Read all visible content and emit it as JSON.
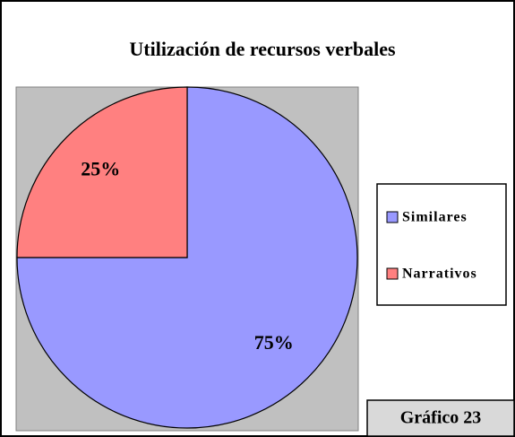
{
  "chart_data": {
    "type": "pie",
    "title": "Utilización de recursos verbales",
    "categories": [
      "Similares",
      "Narrativos"
    ],
    "values": [
      75,
      25
    ],
    "value_labels": [
      "75%",
      "25%"
    ],
    "colors": [
      "#9999ff",
      "#ff8080"
    ],
    "legend": "right",
    "caption": "Gráfico 23"
  }
}
